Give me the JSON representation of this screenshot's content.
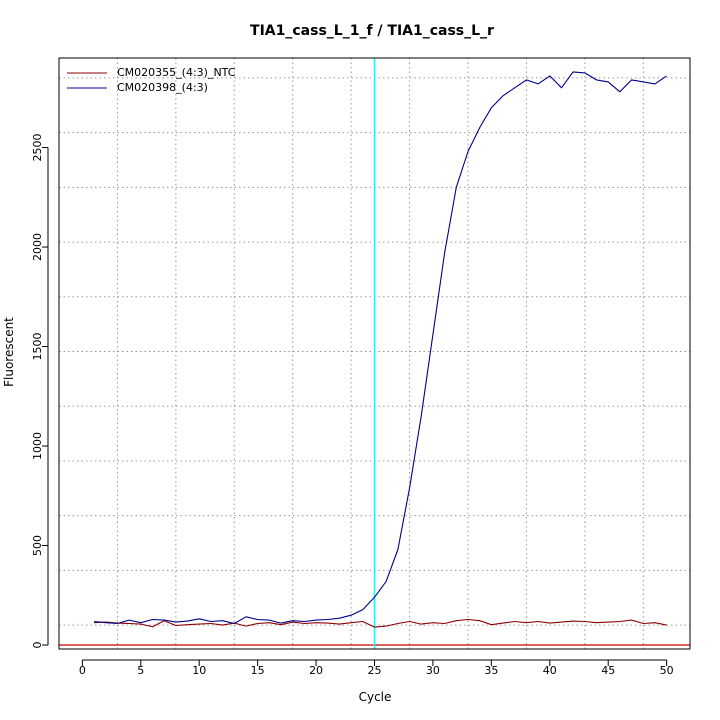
{
  "chart_data": {
    "type": "line",
    "title": "TIA1_cass_L_1_f / TIA1_cass_L_r",
    "xlabel": "Cycle",
    "ylabel": "Fluorescent",
    "xlim": [
      -2,
      52
    ],
    "ylim": [
      -20,
      2950
    ],
    "x_ticks": [
      0,
      5,
      10,
      15,
      20,
      25,
      30,
      35,
      40,
      45,
      50
    ],
    "y_ticks": [
      0,
      500,
      1000,
      1500,
      2000,
      2500
    ],
    "x_grid": [
      3,
      8,
      13,
      18,
      23,
      28,
      33,
      38,
      43,
      48
    ],
    "y_grid": [
      100,
      375,
      650,
      925,
      1200,
      1475,
      1750,
      2025,
      2300,
      2575,
      2850
    ],
    "grid": true,
    "threshold_y": 0,
    "threshold_color": "#cc0000",
    "vline_x": 25,
    "vline_color": "#00ffff",
    "legend_position": "top-left",
    "x": [
      1,
      2,
      3,
      4,
      5,
      6,
      7,
      8,
      9,
      10,
      11,
      12,
      13,
      14,
      15,
      16,
      17,
      18,
      19,
      20,
      21,
      22,
      23,
      24,
      25,
      26,
      27,
      28,
      29,
      30,
      31,
      32,
      33,
      34,
      35,
      36,
      37,
      38,
      39,
      40,
      41,
      42,
      43,
      44,
      45,
      46,
      47,
      48,
      49,
      50
    ],
    "series": [
      {
        "name": "CM020355_(4:3)_NTC",
        "color": "#8b0000",
        "values": [
          112,
          115,
          110,
          108,
          105,
          92,
          122,
          98,
          102,
          105,
          108,
          100,
          110,
          95,
          108,
          112,
          102,
          115,
          108,
          112,
          110,
          105,
          112,
          118,
          90,
          95,
          108,
          118,
          105,
          112,
          108,
          122,
          128,
          122,
          102,
          110,
          118,
          112,
          118,
          110,
          115,
          120,
          118,
          112,
          115,
          118,
          125,
          108,
          112,
          100
        ]
      },
      {
        "name": "CM020398_(4:3)",
        "color": "#00008b",
        "values": [
          118,
          112,
          108,
          125,
          112,
          128,
          125,
          115,
          120,
          132,
          118,
          122,
          108,
          142,
          128,
          125,
          110,
          122,
          118,
          125,
          128,
          135,
          150,
          178,
          240,
          320,
          480,
          790,
          1150,
          1560,
          1970,
          2300,
          2480,
          2600,
          2700,
          2760,
          2800,
          2840,
          2820,
          2860,
          2800,
          2880,
          2875,
          2840,
          2830,
          2780,
          2840,
          2830,
          2820,
          2860
        ]
      }
    ]
  }
}
